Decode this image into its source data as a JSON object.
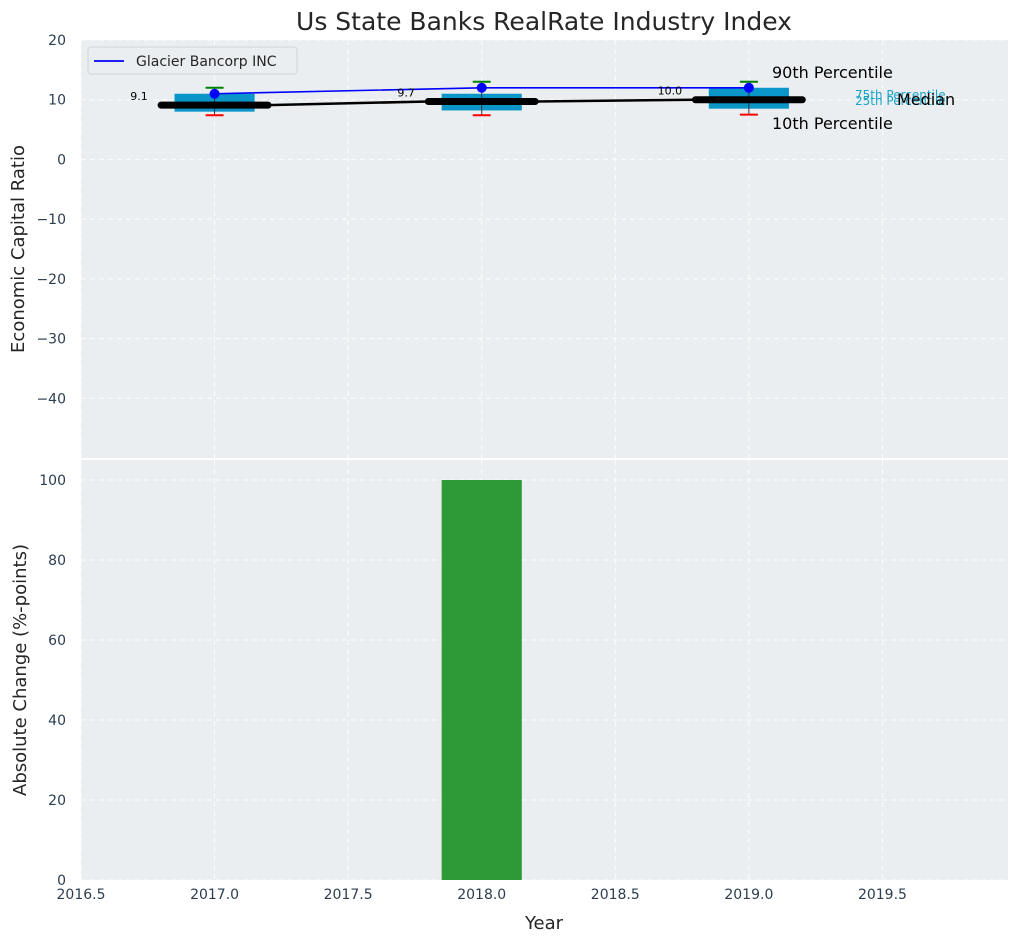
{
  "chart_data": {
    "type": "boxplot-with-bar",
    "title": "Us State Banks RealRate Industry Index",
    "colors": {
      "panel_bg": "#eaeef0",
      "box": "#0a96c9",
      "company_line": "#0000ff",
      "median_line": "#000000",
      "upper_whisker": "#008000",
      "lower_whisker": "#ff0000",
      "bar": "#2e9a35",
      "percentile_text": "#1aa3c9"
    },
    "top_panel": {
      "ylabel": "Economic Capital Ratio",
      "ylim": [
        -50,
        20
      ],
      "yticks": [
        20,
        10,
        0,
        -10,
        -20,
        -30,
        -40
      ],
      "ytick_labels": [
        "20",
        "10",
        "0",
        "−10",
        "−20",
        "−30",
        "−40"
      ],
      "years": [
        2017,
        2018,
        2019
      ],
      "p10": [
        7.4,
        7.4,
        7.5
      ],
      "p25": [
        8.0,
        8.2,
        8.5
      ],
      "median": [
        9.1,
        9.7,
        10.0
      ],
      "p75": [
        11.0,
        11.0,
        12.0
      ],
      "p90": [
        12.0,
        13.0,
        13.0
      ],
      "median_labels": [
        "9.1",
        "9.7",
        "10.0"
      ],
      "company": {
        "name": "Glacier Bancorp INC",
        "values": [
          11.0,
          12.0,
          12.0
        ]
      },
      "legend_entry": "Glacier Bancorp INC",
      "annotations": {
        "p90": "90th Percentile",
        "p75": "75th Percentile",
        "median": "Median",
        "p25": "25th Percentile",
        "p10": "10th Percentile"
      }
    },
    "bottom_panel": {
      "xlabel": "Year",
      "ylabel": "Absolute Change (%-points)",
      "ylim": [
        0,
        105
      ],
      "yticks": [
        0,
        20,
        40,
        60,
        80,
        100
      ],
      "ytick_labels": [
        "0",
        "20",
        "40",
        "60",
        "80",
        "100"
      ],
      "bars": [
        {
          "x": 2018,
          "value": 100
        }
      ]
    },
    "xaxis": {
      "xlim": [
        2016.5,
        2019.97
      ],
      "xticks": [
        2016.5,
        2017.0,
        2017.5,
        2018.0,
        2018.5,
        2019.0,
        2019.5
      ],
      "xtick_labels": [
        "2016.5",
        "2017.0",
        "2017.5",
        "2018.0",
        "2018.5",
        "2019.0",
        "2019.5"
      ]
    }
  }
}
